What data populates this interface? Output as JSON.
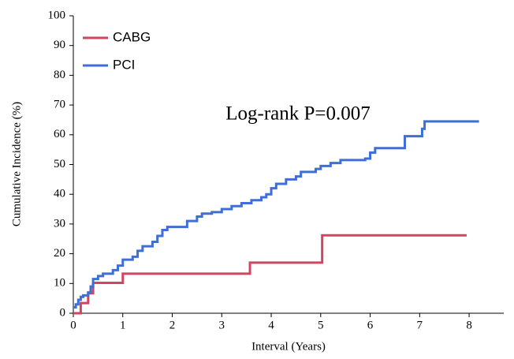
{
  "chart_data": {
    "type": "step",
    "annotation": "Log-rank P=0.007",
    "x_label": "Interval (Years)",
    "y_label": "Cumulative Incidence (%)",
    "xlim": [
      0,
      8.7
    ],
    "ylim": [
      0,
      100
    ],
    "xticks": [
      0,
      1,
      2,
      3,
      4,
      5,
      6,
      7,
      8
    ],
    "yticks": [
      0,
      10,
      20,
      30,
      40,
      50,
      60,
      70,
      80,
      90,
      100
    ],
    "legend": "upper left",
    "series": [
      {
        "name": "CABG",
        "color": "#d0455f",
        "x": [
          0,
          0.15,
          0.3,
          0.4,
          1.0,
          3.57,
          5.03,
          7.95
        ],
        "values": [
          0,
          3.4,
          6.7,
          10.2,
          13.3,
          17,
          26.2,
          26.2
        ]
      },
      {
        "name": "PCI",
        "color": "#3e6fd8",
        "x": [
          0,
          0.05,
          0.1,
          0.15,
          0.2,
          0.3,
          0.35,
          0.4,
          0.5,
          0.6,
          0.8,
          0.9,
          1.0,
          1.2,
          1.3,
          1.4,
          1.6,
          1.7,
          1.8,
          1.9,
          2.3,
          2.5,
          2.6,
          2.8,
          3.0,
          3.2,
          3.4,
          3.6,
          3.8,
          3.9,
          4.0,
          4.1,
          4.3,
          4.5,
          4.6,
          4.9,
          5.0,
          5.2,
          5.4,
          5.9,
          6.0,
          6.1,
          6.7,
          7.05,
          7.1,
          8.2
        ],
        "values": [
          2,
          3,
          4.5,
          5.5,
          6,
          7,
          9,
          11.5,
          12.5,
          13.3,
          14.5,
          16,
          18,
          19,
          21,
          22.5,
          24,
          26,
          28,
          29,
          31,
          32.5,
          33.5,
          34,
          35,
          36,
          37,
          38,
          39,
          40,
          42,
          43.5,
          45,
          46,
          47.5,
          48.5,
          49.5,
          50.5,
          51.5,
          52,
          54,
          55.5,
          59.5,
          62,
          64.5,
          64.5
        ]
      }
    ]
  }
}
